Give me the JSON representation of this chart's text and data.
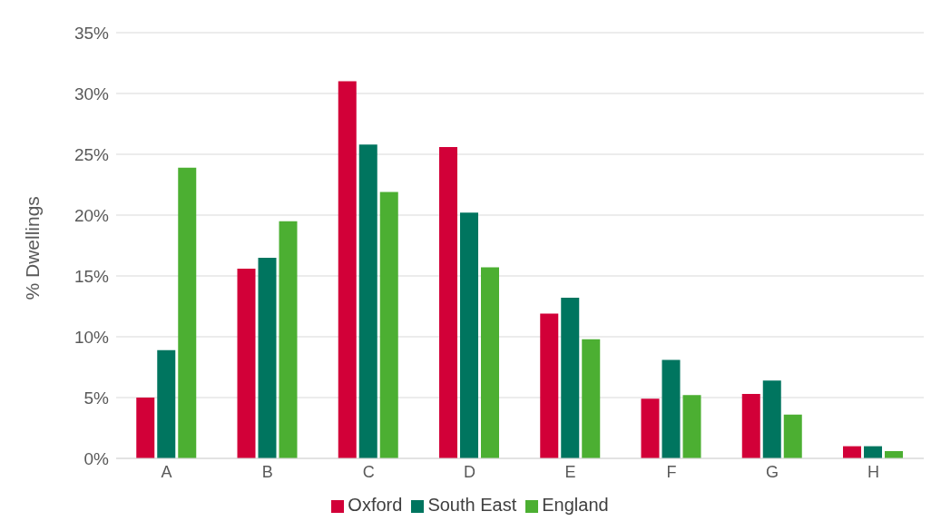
{
  "chart_data": {
    "type": "bar",
    "ylabel": "% Dwellings",
    "categories": [
      "A",
      "B",
      "C",
      "D",
      "E",
      "F",
      "G",
      "H"
    ],
    "series": [
      {
        "name": "Oxford",
        "color": "#d20038",
        "values": [
          5.0,
          15.6,
          31.0,
          25.6,
          11.9,
          4.9,
          5.3,
          1.0
        ]
      },
      {
        "name": "South East",
        "color": "#00755f",
        "values": [
          8.9,
          16.5,
          25.8,
          20.2,
          13.2,
          8.1,
          6.4,
          1.0
        ]
      },
      {
        "name": "England",
        "color": "#4caf32",
        "values": [
          23.9,
          19.5,
          21.9,
          15.7,
          9.8,
          5.2,
          3.6,
          0.6
        ]
      }
    ],
    "ylim": [
      0,
      35
    ],
    "yticks": [
      {
        "value": 0,
        "label": "0%"
      },
      {
        "value": 5,
        "label": "5%"
      },
      {
        "value": 10,
        "label": "10%"
      },
      {
        "value": 15,
        "label": "15%"
      },
      {
        "value": 20,
        "label": "20%"
      },
      {
        "value": 25,
        "label": "25%"
      },
      {
        "value": 30,
        "label": "30%"
      },
      {
        "value": 35,
        "label": "35%"
      }
    ],
    "grid": "y",
    "legend": "bottom"
  }
}
